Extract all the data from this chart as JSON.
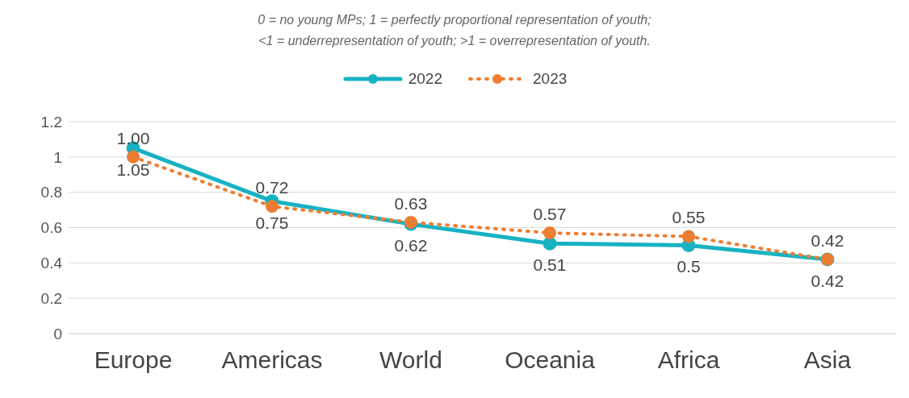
{
  "chart_data": {
    "type": "line",
    "subtitle": "0 = no young MPs; 1 = perfectly proportional representation of youth;\n<1 = underrepresentation of youth; >1 = overrepresentation of youth.",
    "categories": [
      "Europe",
      "Americas",
      "World",
      "Oceania",
      "Africa",
      "Asia"
    ],
    "series": [
      {
        "name": "2022",
        "color": "#17b2c2",
        "values": [
          1.05,
          0.75,
          0.62,
          0.51,
          0.5,
          0.42
        ],
        "value_labels": [
          "1.05",
          "0.75",
          "0.62",
          "0.51",
          "0.5",
          "0.42"
        ],
        "line_style": "solid"
      },
      {
        "name": "2023",
        "color": "#ed7d31",
        "values": [
          1.0,
          0.72,
          0.63,
          0.57,
          0.55,
          0.42
        ],
        "value_labels": [
          "1.00",
          "0.72",
          "0.63",
          "0.57",
          "0.55",
          "0.42"
        ],
        "line_style": "dotted"
      }
    ],
    "ylim": [
      0,
      1.2
    ],
    "yticks": [
      0,
      0.2,
      0.4,
      0.6,
      0.8,
      1,
      1.2
    ],
    "grid": "y",
    "legend": "top",
    "marker": "circle"
  }
}
